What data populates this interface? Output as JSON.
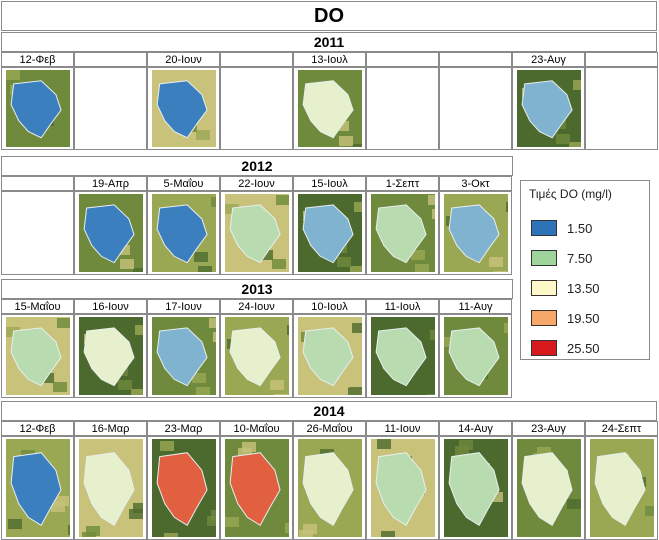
{
  "title": "DO",
  "years": [
    "2011",
    "2012",
    "2013",
    "2014"
  ],
  "rows": [
    {
      "year": "2011",
      "cells": [
        {
          "date": "12-Φεβ",
          "level": "low"
        },
        {
          "date": "",
          "level": null
        },
        {
          "date": "20-Ιουν",
          "level": "low"
        },
        {
          "date": "",
          "level": null
        },
        {
          "date": "13-Ιουλ",
          "level": "pale"
        },
        {
          "date": "",
          "level": null
        },
        {
          "date": "",
          "level": null
        },
        {
          "date": "23-Αυγ",
          "level": "lowmid"
        },
        {
          "date": "",
          "level": null
        }
      ]
    },
    {
      "year": "2012",
      "cells": [
        {
          "date": "",
          "level": null
        },
        {
          "date": "19-Απρ",
          "level": "low"
        },
        {
          "date": "5-Μαΐου",
          "level": "low"
        },
        {
          "date": "22-Ιουν",
          "level": "green"
        },
        {
          "date": "15-Ιουλ",
          "level": "lowmid"
        },
        {
          "date": "1-Σεπτ",
          "level": "green"
        },
        {
          "date": "3-Οκτ",
          "level": "lowmid"
        }
      ]
    },
    {
      "year": "2013",
      "cells": [
        {
          "date": "15-Μαΐου",
          "level": "green"
        },
        {
          "date": "16-Ιουν",
          "level": "pale"
        },
        {
          "date": "17-Ιουν",
          "level": "lowmid"
        },
        {
          "date": "24-Ιουν",
          "level": "pale"
        },
        {
          "date": "10-Ιουλ",
          "level": "green"
        },
        {
          "date": "11-Ιουλ",
          "level": "green"
        },
        {
          "date": "11-Αυγ",
          "level": "green"
        }
      ]
    },
    {
      "year": "2014",
      "cells": [
        {
          "date": "12-Φεβ",
          "level": "low"
        },
        {
          "date": "16-Μαρ",
          "level": "pale"
        },
        {
          "date": "23-Μαρ",
          "level": "high"
        },
        {
          "date": "10-Μαΐου",
          "level": "high"
        },
        {
          "date": "26-Μαΐου",
          "level": "pale"
        },
        {
          "date": "11-Ιουν",
          "level": "green"
        },
        {
          "date": "14-Αυγ",
          "level": "green"
        },
        {
          "date": "23-Αυγ",
          "level": "pale"
        },
        {
          "date": "24-Σεπτ",
          "level": "pale"
        }
      ]
    }
  ],
  "legend": {
    "title": "Τιμές DO (mg/l)",
    "items": [
      {
        "value": "1.50",
        "color": "#2e73b8"
      },
      {
        "value": "7.50",
        "color": "#9fd49a"
      },
      {
        "value": "13.50",
        "color": "#fdf8c8"
      },
      {
        "value": "19.50",
        "color": "#f5a86a"
      },
      {
        "value": "25.50",
        "color": "#d7191c"
      }
    ]
  },
  "level_colors": {
    "low": "#3c7fbf",
    "lowmid": "#7fb3cf",
    "green": "#b8dcb0",
    "pale": "#e6f0cc",
    "high": "#e06040"
  },
  "land_colors": [
    "#6f8a3c",
    "#9aa854",
    "#c8c27a",
    "#4d6a2e"
  ]
}
